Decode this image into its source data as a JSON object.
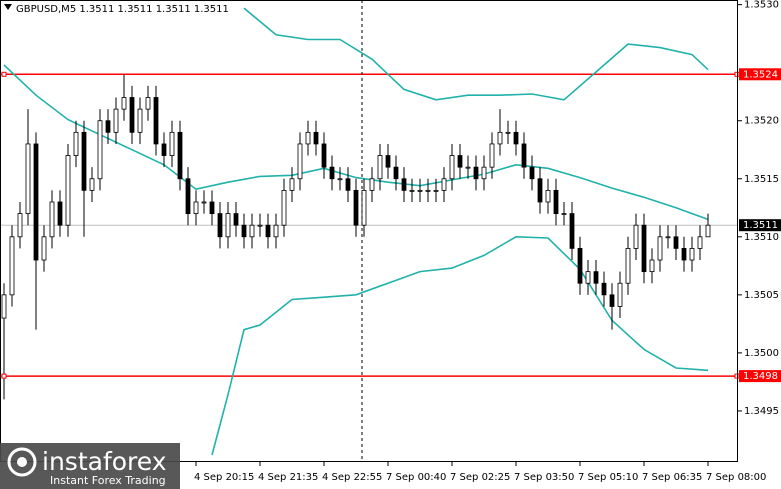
{
  "chart_data": {
    "type": "candlestick",
    "title": "GBPUSD,M5  1.3511 1.3511 1.3511 1.3511",
    "candles": {
      "up_color": "#ffffff",
      "down_color": "#000000",
      "edge_color": "#000000",
      "open": [
        1.3503,
        1.3505,
        1.351,
        1.3512,
        1.3518,
        1.3508,
        1.351,
        1.3513,
        1.3511,
        1.3517,
        1.3519,
        1.3514,
        1.3515,
        1.352,
        1.3519,
        1.3521,
        1.3522,
        1.3519,
        1.3521,
        1.3522,
        1.3518,
        1.3517,
        1.3519,
        1.3515,
        1.3512,
        1.3513,
        1.3513,
        1.3512,
        1.351,
        1.3512,
        1.3511,
        1.351,
        1.3511,
        1.3511,
        1.351,
        1.3511,
        1.3514,
        1.3515,
        1.3518,
        1.3519,
        1.3518,
        1.3516,
        1.3515,
        1.3515,
        1.3514,
        1.3511,
        1.3514,
        1.3515,
        1.3517,
        1.3516,
        1.3515,
        1.3514,
        1.3514,
        1.3514,
        1.3514,
        1.3514,
        1.3515,
        1.3517,
        1.3516,
        1.3516,
        1.3515,
        1.3516,
        1.3518,
        1.3519,
        1.3519,
        1.3518,
        1.3516,
        1.3515,
        1.3513,
        1.3514,
        1.3512,
        1.3512,
        1.3509,
        1.3506,
        1.3507,
        1.3506,
        1.3505,
        1.3504,
        1.3506,
        1.3509,
        1.3511,
        1.3507,
        1.3508,
        1.351,
        1.351,
        1.3509,
        1.3508,
        1.3509,
        1.351
      ],
      "high": [
        1.3506,
        1.3511,
        1.3513,
        1.3521,
        1.3519,
        1.3511,
        1.3514,
        1.3514,
        1.3518,
        1.352,
        1.352,
        1.3516,
        1.3521,
        1.3521,
        1.3522,
        1.3524,
        1.3523,
        1.3522,
        1.3523,
        1.3523,
        1.3519,
        1.352,
        1.352,
        1.3516,
        1.3514,
        1.3514,
        1.3514,
        1.3513,
        1.3513,
        1.3513,
        1.3512,
        1.3512,
        1.3512,
        1.3512,
        1.3512,
        1.3515,
        1.3516,
        1.3519,
        1.352,
        1.352,
        1.3519,
        1.3517,
        1.3516,
        1.3516,
        1.3515,
        1.3515,
        1.3516,
        1.3518,
        1.3518,
        1.3517,
        1.3516,
        1.3515,
        1.3515,
        1.3515,
        1.3515,
        1.3516,
        1.3518,
        1.3518,
        1.3517,
        1.3517,
        1.3517,
        1.3519,
        1.3521,
        1.352,
        1.352,
        1.3519,
        1.3517,
        1.3516,
        1.3515,
        1.3515,
        1.3513,
        1.3513,
        1.351,
        1.3508,
        1.3508,
        1.3507,
        1.3506,
        1.3507,
        1.351,
        1.3512,
        1.3512,
        1.3509,
        1.3511,
        1.3511,
        1.3511,
        1.351,
        1.351,
        1.3511,
        1.3512
      ],
      "low": [
        1.3496,
        1.3504,
        1.3509,
        1.3511,
        1.3502,
        1.3507,
        1.3509,
        1.351,
        1.351,
        1.3516,
        1.351,
        1.3513,
        1.3514,
        1.3518,
        1.3518,
        1.352,
        1.3518,
        1.3518,
        1.352,
        1.3517,
        1.3516,
        1.3516,
        1.3514,
        1.3511,
        1.3511,
        1.3512,
        1.3511,
        1.3509,
        1.3509,
        1.351,
        1.3509,
        1.3509,
        1.351,
        1.3509,
        1.3509,
        1.351,
        1.3513,
        1.3514,
        1.3517,
        1.3517,
        1.3515,
        1.3514,
        1.3514,
        1.3513,
        1.351,
        1.351,
        1.3513,
        1.3514,
        1.3515,
        1.3514,
        1.3513,
        1.3513,
        1.3513,
        1.3513,
        1.3513,
        1.3513,
        1.3514,
        1.3515,
        1.3515,
        1.3514,
        1.3514,
        1.3515,
        1.3517,
        1.3518,
        1.3517,
        1.3515,
        1.3514,
        1.3512,
        1.3512,
        1.3511,
        1.3511,
        1.3508,
        1.3505,
        1.3505,
        1.3505,
        1.3504,
        1.3502,
        1.3503,
        1.3505,
        1.3508,
        1.3506,
        1.3506,
        1.3507,
        1.3509,
        1.3508,
        1.3507,
        1.3507,
        1.3508,
        1.351
      ],
      "close": [
        1.3505,
        1.351,
        1.3512,
        1.3518,
        1.3508,
        1.351,
        1.3513,
        1.3511,
        1.3517,
        1.3519,
        1.3514,
        1.3515,
        1.352,
        1.3519,
        1.3521,
        1.3522,
        1.3519,
        1.3521,
        1.3522,
        1.3518,
        1.3517,
        1.3519,
        1.3515,
        1.3512,
        1.3513,
        1.3513,
        1.3512,
        1.351,
        1.3512,
        1.3511,
        1.351,
        1.3511,
        1.3511,
        1.351,
        1.3511,
        1.3514,
        1.3515,
        1.3518,
        1.3519,
        1.3518,
        1.3516,
        1.3515,
        1.3515,
        1.3514,
        1.3511,
        1.3514,
        1.3515,
        1.3517,
        1.3516,
        1.3515,
        1.3514,
        1.3514,
        1.3514,
        1.3514,
        1.3514,
        1.3515,
        1.3517,
        1.3516,
        1.3516,
        1.3515,
        1.3516,
        1.3518,
        1.3519,
        1.3519,
        1.3518,
        1.3516,
        1.3515,
        1.3513,
        1.3514,
        1.3512,
        1.3512,
        1.3509,
        1.3506,
        1.3507,
        1.3506,
        1.3505,
        1.3504,
        1.3506,
        1.3509,
        1.3511,
        1.3507,
        1.3508,
        1.351,
        1.351,
        1.3509,
        1.3508,
        1.3509,
        1.351,
        1.3511
      ]
    },
    "bands": [
      {
        "color": "#20b2aa",
        "x": [
          30,
          34,
          38,
          42,
          46,
          50,
          54,
          58,
          62,
          66,
          70,
          74,
          78,
          82,
          86,
          88
        ],
        "values": [
          1.35297,
          1.35274,
          1.3527,
          1.3527,
          1.35253,
          1.35227,
          1.35218,
          1.35222,
          1.35222,
          1.35223,
          1.35218,
          1.35242,
          1.35266,
          1.35263,
          1.35257,
          1.35244
        ]
      },
      {
        "color": "#20b2aa",
        "x": [
          0,
          4,
          8,
          12,
          16,
          20,
          24,
          28,
          32,
          36,
          40,
          44,
          48,
          52,
          56,
          60,
          64,
          68,
          72,
          76,
          80,
          84,
          88
        ],
        "values": [
          1.35248,
          1.35222,
          1.35201,
          1.35188,
          1.35175,
          1.35162,
          1.35141,
          1.35147,
          1.35152,
          1.35153,
          1.35159,
          1.35151,
          1.35147,
          1.35144,
          1.35149,
          1.35154,
          1.35162,
          1.35159,
          1.35151,
          1.35142,
          1.35134,
          1.35125,
          1.35115
        ]
      },
      {
        "color": "#20b2aa",
        "x": [
          26,
          28,
          30,
          32,
          36,
          40,
          44,
          48,
          52,
          56,
          60,
          64,
          68,
          72,
          76,
          80,
          84,
          88
        ],
        "values": [
          1.34912,
          1.34964,
          1.3502,
          1.35024,
          1.35046,
          1.35048,
          1.3505,
          1.3506,
          1.3507,
          1.35073,
          1.35084,
          1.351,
          1.35099,
          1.35072,
          1.35028,
          1.35003,
          1.34987,
          1.34985
        ]
      }
    ],
    "levels": [
      {
        "value": 1.3524,
        "color": "#ff0000"
      },
      {
        "value": 1.3498,
        "color": "#ff0000"
      }
    ],
    "current": {
      "value": 1.3511,
      "color": "#c0c0c0"
    },
    "ylim": [
      1.34906,
      1.35304
    ],
    "yticks": [
      1.3495,
      {
        "value": 1.35,
        "label": "1.3500"
      },
      1.3505,
      {
        "value": 1.351,
        "label": "1.3510"
      },
      1.3515,
      {
        "value": 1.352,
        "label": "1.3520"
      },
      {
        "value": 1.353,
        "label": "1.3530"
      }
    ],
    "xlim": [
      -0.5,
      91.75
    ],
    "xticks": [
      {
        "value": 24,
        "label": "4 Sep 20:15"
      },
      {
        "value": 32,
        "label": "4 Sep 21:35"
      },
      {
        "value": 40,
        "label": "4 Sep 22:55"
      },
      {
        "value": 48,
        "label": "7 Sep 00:40"
      },
      {
        "value": 56,
        "label": "7 Sep 02:25"
      },
      {
        "value": 64,
        "label": "7 Sep 03:50"
      },
      {
        "value": 72,
        "label": "7 Sep 05:10"
      },
      {
        "value": 80,
        "label": "7 Sep 06:35"
      },
      {
        "value": 88,
        "label": "7 Sep 08:00"
      }
    ]
  },
  "watermark": {
    "brand": "instaforex",
    "tagline": "Instant Forex Trading"
  }
}
